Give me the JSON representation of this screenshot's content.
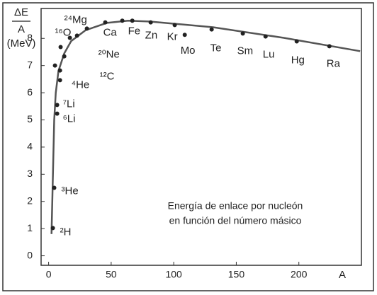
{
  "chart_data": {
    "type": "scatter",
    "y_label": [
      "ΔE",
      "A",
      "(MeV)"
    ],
    "x_label": "A",
    "annotation": [
      "Energía de enlace por nucleón",
      "en función del número másico"
    ],
    "xlim": [
      -6,
      250
    ],
    "ylim": [
      -0.35,
      9.1
    ],
    "xticks": [
      0,
      50,
      100,
      150,
      200
    ],
    "yticks": [
      0,
      1,
      2,
      3,
      4,
      5,
      6,
      7,
      8
    ],
    "grid": false,
    "color": "#222222",
    "curve_color": "#555555",
    "curve": {
      "x": [
        2.3,
        3.4,
        4.5,
        5.7,
        7.9,
        12.5,
        18,
        29.5,
        46.5,
        63.5,
        80.5,
        131.4,
        188,
        249
      ],
      "y": [
        0.8,
        2.9,
        5.0,
        6.0,
        6.8,
        7.45,
        7.9,
        8.3,
        8.57,
        8.65,
        8.62,
        8.41,
        8.02,
        7.53
      ]
    },
    "x": [
      3.4,
      4.5,
      6.8,
      6.8,
      5.1,
      9.1,
      9.1,
      12.5,
      9.6,
      17,
      22.7,
      30.6,
      45.3,
      58.9,
      66.9,
      81.6,
      100.8,
      108.8,
      130.3,
      155.2,
      173.4,
      198.3,
      224.4
    ],
    "values": [
      1.02,
      2.5,
      5.23,
      5.55,
      7.0,
      6.82,
      6.46,
      7.34,
      7.68,
      8.02,
      8.1,
      8.36,
      8.59,
      8.65,
      8.65,
      8.59,
      8.49,
      8.13,
      8.33,
      8.18,
      8.07,
      7.89,
      7.71
    ],
    "labels": [
      "²H",
      "³He",
      "⁶Li",
      "⁷Li",
      null,
      "⁴He",
      null,
      "¹²C",
      "¹⁶O",
      null,
      "²⁰Ne",
      "²⁴Mg",
      "Ca",
      "Fe",
      null,
      "Zn",
      "Kr",
      "Mo",
      "Te",
      "Sm",
      "Lu",
      "Hg",
      "Ra"
    ]
  }
}
